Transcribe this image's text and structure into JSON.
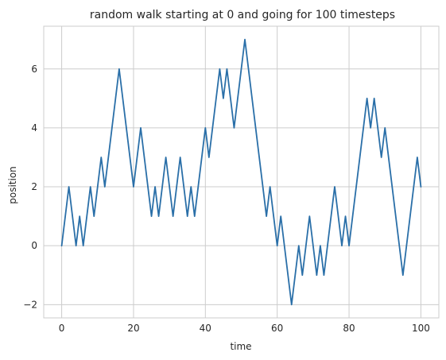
{
  "chart_data": {
    "type": "line",
    "title": "random walk starting at 0 and going for 100 timesteps",
    "xlabel": "time",
    "ylabel": "position",
    "xlim": [
      -5,
      105
    ],
    "ylim": [
      -2.45,
      7.45
    ],
    "xticks": [
      0,
      20,
      40,
      60,
      80,
      100
    ],
    "yticks": [
      -2,
      0,
      2,
      4,
      6
    ],
    "xtick_labels": [
      "0",
      "20",
      "40",
      "60",
      "80",
      "100"
    ],
    "ytick_labels": [
      "−2",
      "0",
      "2",
      "4",
      "6"
    ],
    "grid": true,
    "series": [
      {
        "color": "#2a6fa8",
        "x": [
          0,
          1,
          2,
          3,
          4,
          5,
          6,
          7,
          8,
          9,
          10,
          11,
          12,
          13,
          14,
          15,
          16,
          17,
          18,
          19,
          20,
          21,
          22,
          23,
          24,
          25,
          26,
          27,
          28,
          29,
          30,
          31,
          32,
          33,
          34,
          35,
          36,
          37,
          38,
          39,
          40,
          41,
          42,
          43,
          44,
          45,
          46,
          47,
          48,
          49,
          50,
          51,
          52,
          53,
          54,
          55,
          56,
          57,
          58,
          59,
          60,
          61,
          62,
          63,
          64,
          65,
          66,
          67,
          68,
          69,
          70,
          71,
          72,
          73,
          74,
          75,
          76,
          77,
          78,
          79,
          80,
          81,
          82,
          83,
          84,
          85,
          86,
          87,
          88,
          89,
          90,
          91,
          92,
          93,
          94,
          95,
          96,
          97,
          98,
          99,
          100
        ],
        "y": [
          0,
          1,
          2,
          1,
          0,
          1,
          0,
          1,
          2,
          1,
          2,
          3,
          2,
          3,
          4,
          5,
          6,
          5,
          4,
          3,
          2,
          3,
          4,
          3,
          2,
          1,
          2,
          1,
          2,
          3,
          2,
          1,
          2,
          3,
          2,
          1,
          2,
          1,
          2,
          3,
          4,
          3,
          4,
          5,
          6,
          5,
          6,
          5,
          4,
          5,
          6,
          7,
          6,
          5,
          4,
          3,
          2,
          1,
          2,
          1,
          0,
          1,
          0,
          -1,
          -2,
          -1,
          0,
          -1,
          0,
          1,
          0,
          -1,
          0,
          -1,
          0,
          1,
          2,
          1,
          0,
          1,
          0,
          1,
          2,
          3,
          4,
          5,
          4,
          5,
          4,
          3,
          4,
          3,
          2,
          1,
          0,
          -1,
          0,
          1,
          2,
          3,
          2
        ]
      }
    ]
  }
}
